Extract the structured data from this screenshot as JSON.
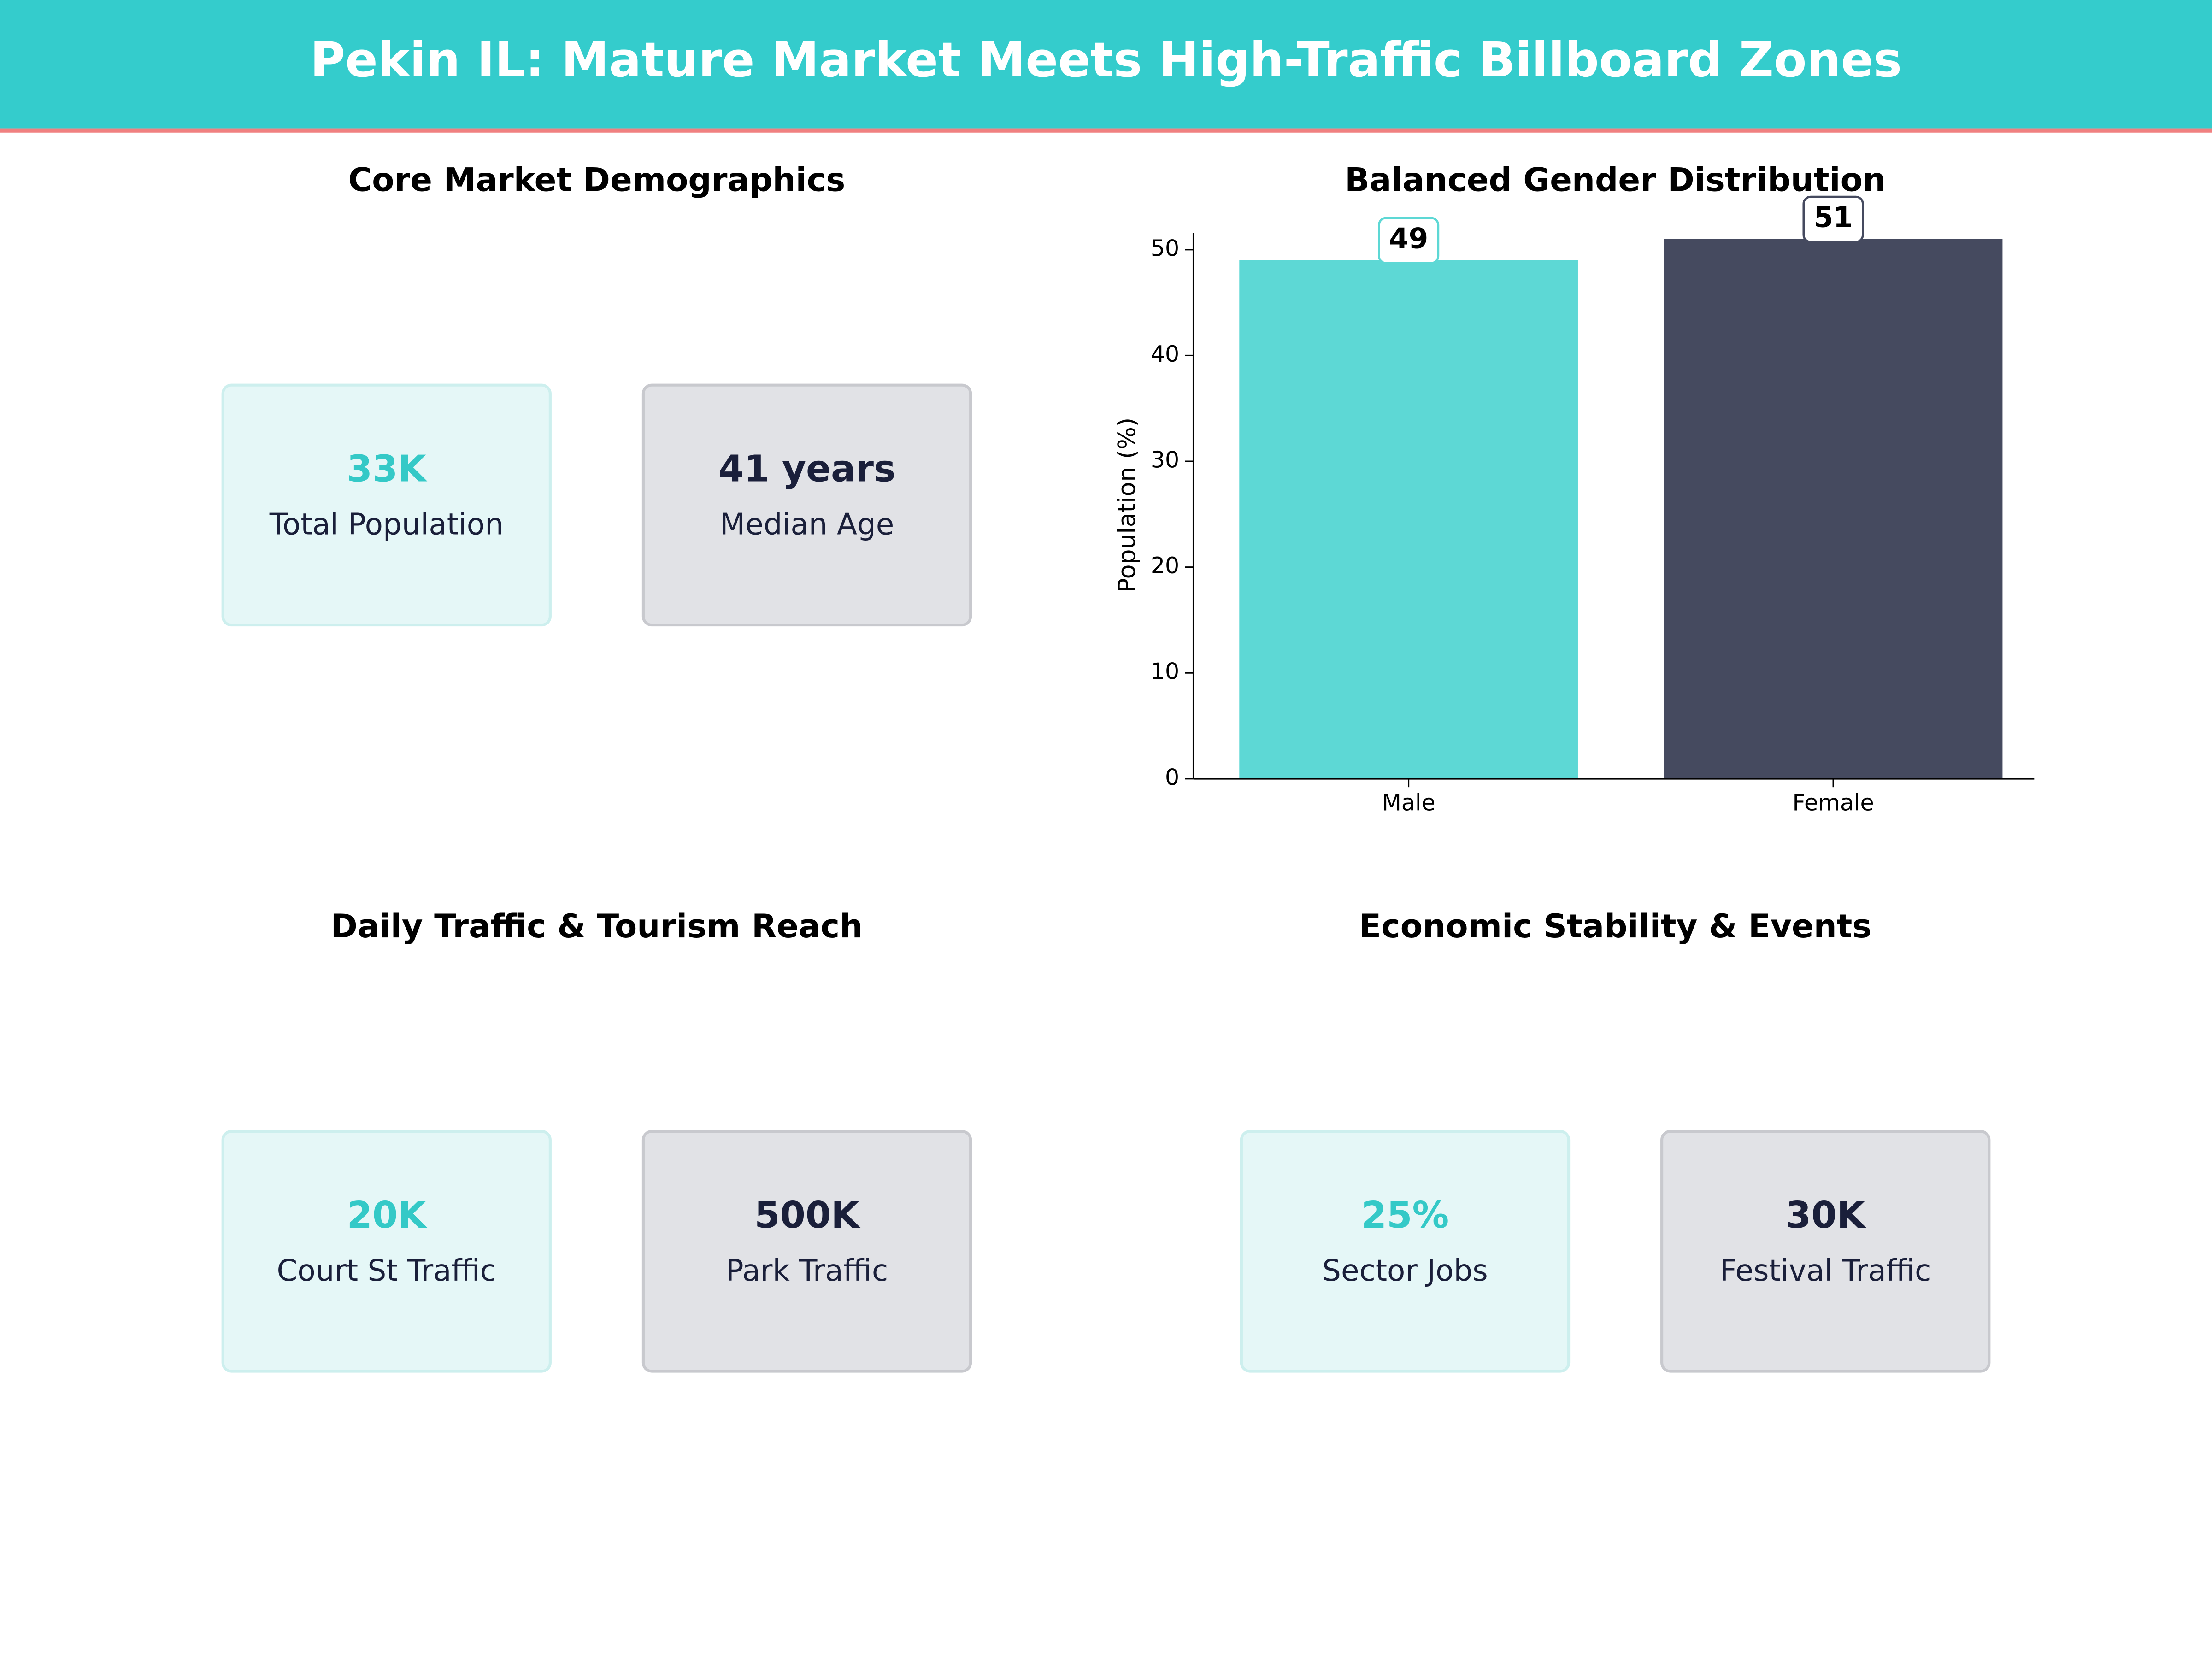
{
  "title": "Pekin IL: Mature Market Meets High-Traffic Billboard Zones",
  "panels": [
    {
      "title": "Core Market Demographics",
      "cards": [
        {
          "value": "33K",
          "label": "Total Population"
        },
        {
          "value": "41 years",
          "label": "Median Age"
        }
      ]
    },
    {
      "title": "Daily Traffic & Tourism Reach",
      "cards": [
        {
          "value": "20K",
          "label": "Court St Traffic"
        },
        {
          "value": "500K",
          "label": "Park Traffic"
        }
      ]
    },
    {
      "title": "Economic Stability & Events",
      "cards": [
        {
          "value": "25%",
          "label": "Sector Jobs"
        },
        {
          "value": "30K",
          "label": "Festival Traffic"
        }
      ]
    }
  ],
  "chart_data": {
    "type": "bar",
    "title": "Balanced Gender Distribution",
    "ylabel": "Population (%)",
    "categories": [
      "Male",
      "Female"
    ],
    "values": [
      49,
      51
    ],
    "colors": [
      "#5dd8d5",
      "#454a5f"
    ],
    "ylim": [
      0,
      51.6
    ],
    "yticks": [
      0,
      10,
      20,
      30,
      40,
      50
    ]
  }
}
